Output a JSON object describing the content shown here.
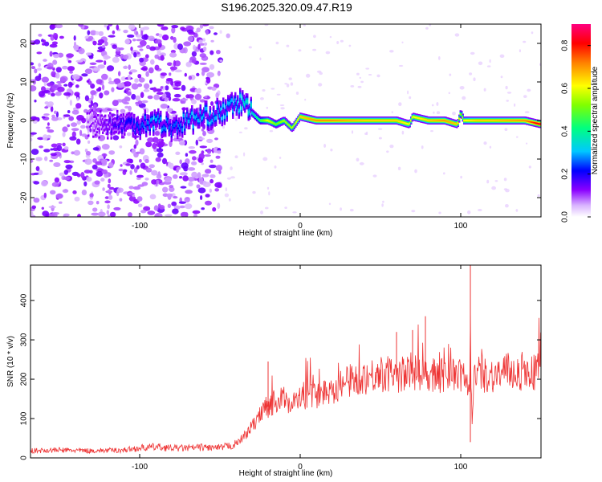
{
  "title": "S196.2025.320.09.47.R19",
  "chart_data": [
    {
      "type": "heatmap",
      "xlabel": "Height of straight line (km)",
      "ylabel": "Frequency (Hz)",
      "xlim": [
        -168,
        150
      ],
      "ylim": [
        -25,
        25
      ],
      "x_ticks": [
        -100,
        0,
        100
      ],
      "y_ticks": [
        -20,
        -10,
        0,
        10,
        20
      ],
      "colorbar": {
        "label": "Normalized spectral amplitude",
        "range": [
          0,
          0.9
        ],
        "ticks": [
          0.0,
          0.2,
          0.4,
          0.6,
          0.8
        ],
        "colormap": [
          "#ffffff",
          "#8a00ff",
          "#0000ff",
          "#00c8ff",
          "#00ff80",
          "#ffff00",
          "#ff8000",
          "#ff0000",
          "#ff0080"
        ]
      },
      "ridge": {
        "x": [
          -168,
          -140,
          -120,
          -100,
          -90,
          -80,
          -70,
          -60,
          -50,
          -40,
          -35,
          -30,
          -25,
          -20,
          -15,
          -10,
          -5,
          0,
          10,
          20,
          40,
          60,
          68,
          70,
          80,
          90,
          98,
          100,
          102,
          110,
          120,
          140,
          150
        ],
        "y": [
          0,
          0,
          -1,
          -1,
          0,
          -2,
          0,
          1,
          2,
          4,
          5,
          2,
          0,
          0,
          -1,
          0,
          -2,
          1,
          0,
          0,
          0,
          0,
          -1,
          1,
          0,
          0,
          -1,
          2,
          0,
          0,
          0,
          0,
          -1
        ],
        "amplitude": [
          0.0,
          0.0,
          0.15,
          0.25,
          0.3,
          0.25,
          0.3,
          0.3,
          0.3,
          0.3,
          0.35,
          0.35,
          0.45,
          0.6,
          0.5,
          0.55,
          0.55,
          0.65,
          0.7,
          0.7,
          0.65,
          0.65,
          0.6,
          0.6,
          0.65,
          0.7,
          0.65,
          0.5,
          0.6,
          0.65,
          0.65,
          0.7,
          0.85
        ]
      }
    },
    {
      "type": "line",
      "xlabel": "Height of straight line (km)",
      "ylabel": "SNR (10 * v/v)",
      "xlim": [
        -168,
        150
      ],
      "ylim": [
        0,
        490
      ],
      "x_ticks": [
        -100,
        0,
        100
      ],
      "y_ticks": [
        0,
        100,
        200,
        300,
        400
      ],
      "color": "#ee3333",
      "series": [
        {
          "x": [
            -168,
            -150,
            -130,
            -110,
            -100,
            -90,
            -80,
            -70,
            -60,
            -50,
            -45,
            -40,
            -35,
            -30,
            -25,
            -22,
            -20,
            -15,
            -10,
            -5,
            0,
            10,
            20,
            30,
            40,
            50,
            60,
            70,
            80,
            90,
            95,
            100,
            103,
            105,
            106,
            107,
            108,
            110,
            120,
            130,
            140,
            150
          ],
          "values": [
            18,
            20,
            18,
            20,
            25,
            28,
            25,
            25,
            27,
            25,
            30,
            35,
            55,
            80,
            110,
            140,
            130,
            145,
            150,
            140,
            150,
            160,
            175,
            195,
            205,
            215,
            210,
            215,
            215,
            210,
            215,
            205,
            220,
            130,
            300,
            90,
            200,
            215,
            210,
            220,
            215,
            220
          ],
          "spikes": [
            {
              "x": -20,
              "y": 245
            },
            {
              "x": 60,
              "y": 320
            },
            {
              "x": 70,
              "y": 325
            },
            {
              "x": 78,
              "y": 360
            },
            {
              "x": 106,
              "y": 490
            },
            {
              "x": 106,
              "y": 40
            }
          ]
        }
      ]
    }
  ]
}
